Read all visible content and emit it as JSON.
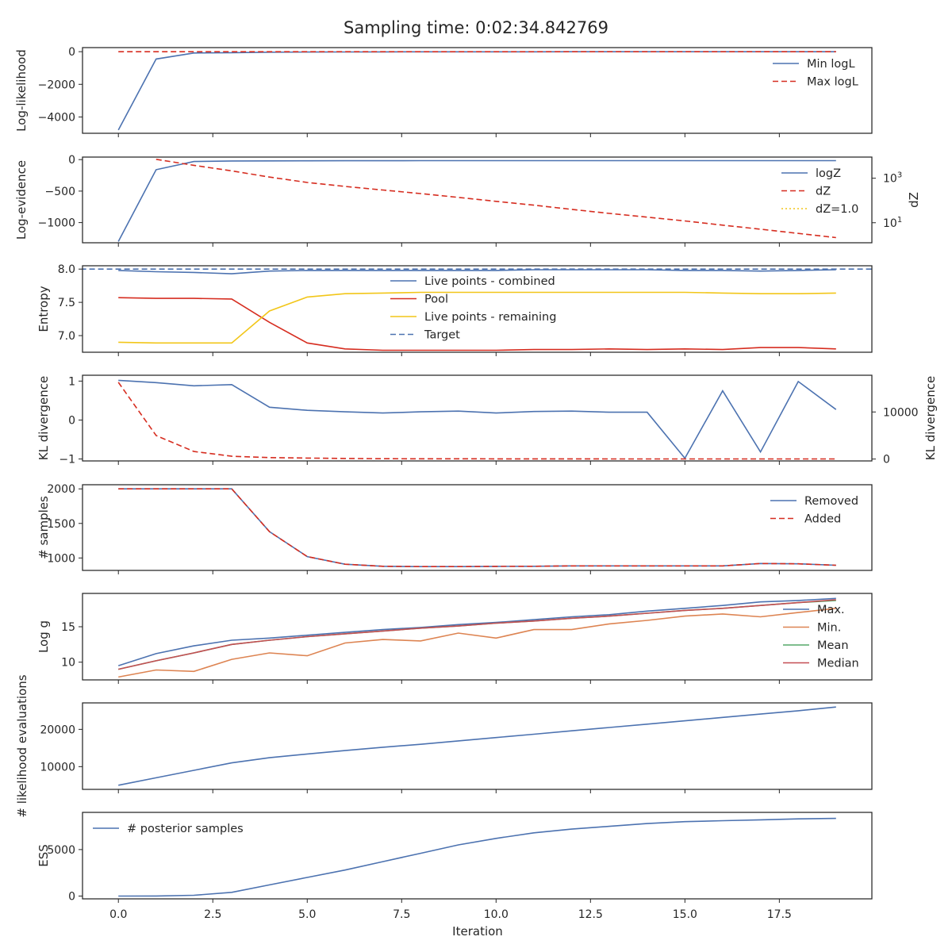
{
  "title": "Sampling time: 0:02:34.842769",
  "xlabel": "Iteration",
  "x_ticks": [
    "0.0",
    "2.5",
    "5.0",
    "7.5",
    "10.0",
    "12.5",
    "15.0",
    "17.5"
  ],
  "colors": {
    "blue": "#4c72b0",
    "red": "#d62d20",
    "yellow": "#f2c619",
    "orange": "#dd8452",
    "green": "#55a868",
    "brown": "#c44e52",
    "axis": "#262626"
  },
  "chart_data": [
    {
      "type": "line",
      "ylabel": "Log-likelihood",
      "x": [
        0,
        1,
        2,
        3,
        4,
        5,
        6,
        7,
        8,
        9,
        10,
        11,
        12,
        13,
        14,
        15,
        16,
        17,
        18,
        19
      ],
      "ylim": [
        -5000,
        250
      ],
      "yticks": [
        {
          "v": 0,
          "t": "0"
        },
        {
          "v": -2000,
          "t": "−2000"
        },
        {
          "v": -4000,
          "t": "−4000"
        }
      ],
      "series": [
        {
          "name": "Min logL",
          "color": "blue",
          "dash": false,
          "x": [
            0,
            1,
            2,
            3,
            4,
            5,
            6,
            7,
            8,
            9,
            10,
            11,
            12,
            13,
            14,
            15,
            16,
            17,
            18,
            19
          ],
          "values": [
            -4800,
            -450,
            -80,
            -60,
            -30,
            -20,
            -15,
            -12,
            -10,
            -8,
            -7,
            -6,
            -5,
            -5,
            -4,
            -4,
            -3,
            -3,
            -3,
            -3
          ]
        },
        {
          "name": "Max logL",
          "color": "red",
          "dash": true,
          "x": [
            0,
            1,
            2,
            3,
            4,
            5,
            6,
            7,
            8,
            9,
            10,
            11,
            12,
            13,
            14,
            15,
            16,
            17,
            18,
            19
          ],
          "values": [
            -2,
            -2,
            -2,
            -2,
            -2,
            -2,
            -2,
            -2,
            -2,
            -2,
            -2,
            -2,
            -2,
            -2,
            -2,
            -2,
            -2,
            -2,
            -2,
            -2
          ]
        }
      ],
      "legend": "upper-right"
    },
    {
      "type": "line",
      "ylabel": "Log-evidence",
      "ylabel_right": "dZ",
      "ylim": [
        -1320,
        40
      ],
      "yticks": [
        {
          "v": 0,
          "t": "0"
        },
        {
          "v": -500,
          "t": "−500"
        },
        {
          "v": -1000,
          "t": "−1000"
        }
      ],
      "right_scale": "log",
      "right_ylim_log10": [
        0.1,
        3.95
      ],
      "right_ticks": [
        {
          "v": 3,
          "t": "10",
          "sup": "3"
        },
        {
          "v": 1,
          "t": "10",
          "sup": "1"
        }
      ],
      "series": [
        {
          "name": "logZ",
          "color": "blue",
          "dash": false,
          "axis": "left",
          "x": [
            0,
            1,
            2,
            3,
            4,
            5,
            6,
            7,
            8,
            9,
            10,
            11,
            12,
            13,
            14,
            15,
            16,
            17,
            18,
            19
          ],
          "values": [
            -1300,
            -160,
            -30,
            -22,
            -20,
            -19,
            -18,
            -18,
            -17,
            -17,
            -17,
            -17,
            -17,
            -17,
            -17,
            -17,
            -17,
            -17,
            -17,
            -17
          ]
        },
        {
          "name": "dZ",
          "color": "red",
          "dash": true,
          "axis": "right",
          "x": [
            1,
            2,
            3,
            4,
            5,
            6,
            7,
            8,
            9,
            10,
            11,
            12,
            13,
            14,
            15,
            16,
            17,
            18,
            19
          ],
          "values": [
            3.85,
            3.58,
            3.33,
            3.05,
            2.81,
            2.63,
            2.47,
            2.31,
            2.14,
            1.96,
            1.79,
            1.6,
            1.42,
            1.25,
            1.08,
            0.89,
            0.71,
            0.52,
            0.33
          ]
        },
        {
          "name": "dZ=1.0",
          "color": "yellow",
          "dash": "dot",
          "axis": "right",
          "x": [
            -1,
            20
          ],
          "values": [
            0.0,
            0.0
          ]
        }
      ],
      "legend": "upper-right"
    },
    {
      "type": "line",
      "ylabel": "Entropy",
      "ylim": [
        6.75,
        8.05
      ],
      "yticks": [
        {
          "v": 8.0,
          "t": "8.0"
        },
        {
          "v": 7.5,
          "t": "7.5"
        },
        {
          "v": 7.0,
          "t": "7.0"
        }
      ],
      "series": [
        {
          "name": "Live points - combined",
          "color": "blue",
          "dash": false,
          "x": [
            0,
            1,
            2,
            3,
            4,
            5,
            6,
            7,
            8,
            9,
            10,
            11,
            12,
            13,
            14,
            15,
            16,
            17,
            18,
            19
          ],
          "values": [
            7.98,
            7.96,
            7.95,
            7.93,
            7.97,
            7.98,
            7.98,
            7.98,
            7.98,
            7.98,
            7.98,
            7.99,
            7.99,
            7.99,
            7.99,
            7.98,
            7.98,
            7.97,
            7.98,
            7.99
          ]
        },
        {
          "name": "Pool",
          "color": "red",
          "dash": false,
          "x": [
            0,
            1,
            2,
            3,
            4,
            5,
            6,
            7,
            8,
            9,
            10,
            11,
            12,
            13,
            14,
            15,
            16,
            17,
            18,
            19
          ],
          "values": [
            7.57,
            7.56,
            7.56,
            7.55,
            7.2,
            6.89,
            6.8,
            6.78,
            6.78,
            6.78,
            6.78,
            6.79,
            6.79,
            6.8,
            6.79,
            6.8,
            6.79,
            6.82,
            6.82,
            6.8
          ]
        },
        {
          "name": "Live points - remaining",
          "color": "yellow",
          "dash": false,
          "x": [
            0,
            1,
            2,
            3,
            4,
            5,
            6,
            7,
            8,
            9,
            10,
            11,
            12,
            13,
            14,
            15,
            16,
            17,
            18,
            19
          ],
          "values": [
            6.9,
            6.89,
            6.89,
            6.89,
            7.37,
            7.58,
            7.63,
            7.64,
            7.65,
            7.65,
            7.65,
            7.65,
            7.65,
            7.65,
            7.65,
            7.65,
            7.64,
            7.63,
            7.63,
            7.64
          ]
        },
        {
          "name": "Target",
          "color": "blue",
          "dash": true,
          "x": [
            -1,
            20
          ],
          "values": [
            8.0,
            8.0
          ]
        }
      ],
      "legend": "upper-center"
    },
    {
      "type": "line",
      "ylabel": "KL divergence",
      "ylabel_right": "KL divergence",
      "ylim": [
        -1.05,
        1.15
      ],
      "yticks": [
        {
          "v": 1,
          "t": "1"
        },
        {
          "v": 0,
          "t": "0"
        },
        {
          "v": -1,
          "t": "−1"
        }
      ],
      "right_ylim": [
        -400,
        17800
      ],
      "right_ticks": [
        {
          "v": 10000,
          "t": "10000"
        },
        {
          "v": 0,
          "t": "0"
        }
      ],
      "series": [
        {
          "name": "",
          "color": "blue",
          "dash": false,
          "axis": "left",
          "x": [
            0,
            1,
            2,
            3,
            4,
            5,
            6,
            7,
            8,
            9,
            10,
            11,
            12,
            13,
            14,
            15,
            16,
            17,
            18,
            19
          ],
          "values": [
            1.02,
            0.96,
            0.88,
            0.91,
            0.33,
            0.25,
            0.21,
            0.18,
            0.21,
            0.23,
            0.18,
            0.22,
            0.23,
            0.2,
            0.2,
            -0.98,
            0.75,
            -0.82,
            0.99,
            0.27
          ]
        },
        {
          "name": "",
          "color": "red",
          "dash": true,
          "axis": "right",
          "x": [
            0,
            1,
            2,
            3,
            4,
            5,
            6,
            7,
            8,
            9,
            10,
            11,
            12,
            13,
            14,
            15,
            16,
            17,
            18,
            19
          ],
          "values": [
            16300,
            5000,
            1600,
            600,
            300,
            200,
            120,
            80,
            60,
            50,
            40,
            30,
            30,
            20,
            20,
            20,
            20,
            20,
            20,
            20
          ]
        }
      ]
    },
    {
      "type": "line",
      "ylabel": "# samples",
      "ylim": [
        820,
        2060
      ],
      "yticks": [
        {
          "v": 2000,
          "t": "2000"
        },
        {
          "v": 1500,
          "t": "1500"
        },
        {
          "v": 1000,
          "t": "1000"
        }
      ],
      "series": [
        {
          "name": "Removed",
          "color": "blue",
          "dash": false,
          "x": [
            0,
            1,
            2,
            3,
            4,
            5,
            6,
            7,
            8,
            9,
            10,
            11,
            12,
            13,
            14,
            15,
            16,
            17,
            18,
            19
          ],
          "values": [
            2000,
            2000,
            2000,
            2000,
            1380,
            1020,
            910,
            880,
            875,
            875,
            878,
            880,
            885,
            885,
            885,
            885,
            885,
            920,
            915,
            895
          ]
        },
        {
          "name": "Added",
          "color": "red",
          "dash": true,
          "x": [
            0,
            1,
            2,
            3,
            4,
            5,
            6,
            7,
            8,
            9,
            10,
            11,
            12,
            13,
            14,
            15,
            16,
            17,
            18,
            19
          ],
          "values": [
            2000,
            2000,
            2000,
            2000,
            1380,
            1020,
            910,
            880,
            875,
            875,
            878,
            880,
            885,
            885,
            885,
            885,
            885,
            920,
            915,
            895
          ]
        }
      ],
      "legend": "upper-right"
    },
    {
      "type": "line",
      "ylabel": "Log g",
      "ylim": [
        7.5,
        19.7
      ],
      "yticks": [
        {
          "v": 15,
          "t": "15"
        },
        {
          "v": 10,
          "t": "10"
        }
      ],
      "series": [
        {
          "name": "Max.",
          "color": "blue",
          "dash": false,
          "x": [
            0,
            1,
            2,
            3,
            4,
            5,
            6,
            7,
            8,
            9,
            10,
            11,
            12,
            13,
            14,
            15,
            16,
            17,
            18,
            19
          ],
          "values": [
            9.5,
            11.2,
            12.3,
            13.1,
            13.4,
            13.8,
            14.2,
            14.6,
            14.9,
            15.3,
            15.6,
            16.0,
            16.4,
            16.7,
            17.2,
            17.6,
            18.0,
            18.5,
            18.7,
            19.0
          ]
        },
        {
          "name": "Min.",
          "color": "orange",
          "dash": false,
          "x": [
            0,
            1,
            2,
            3,
            4,
            5,
            6,
            7,
            8,
            9,
            10,
            11,
            12,
            13,
            14,
            15,
            16,
            17,
            18,
            19
          ],
          "values": [
            7.9,
            8.9,
            8.7,
            10.4,
            11.3,
            10.9,
            12.7,
            13.2,
            13.0,
            14.1,
            13.4,
            14.6,
            14.6,
            15.4,
            15.9,
            16.5,
            16.8,
            16.4,
            17.0,
            17.6
          ]
        },
        {
          "name": "Mean",
          "color": "green",
          "dash": false,
          "x": [
            0,
            1,
            2,
            3,
            4,
            5,
            6,
            7,
            8,
            9,
            10,
            11,
            12,
            13,
            14,
            15,
            16,
            17,
            18,
            19
          ],
          "values": [
            9.0,
            10.2,
            11.3,
            12.5,
            13.1,
            13.6,
            14.0,
            14.4,
            14.8,
            15.1,
            15.5,
            15.8,
            16.2,
            16.5,
            16.9,
            17.3,
            17.6,
            18.0,
            18.4,
            18.7
          ]
        },
        {
          "name": "Median",
          "color": "brown",
          "dash": false,
          "x": [
            0,
            1,
            2,
            3,
            4,
            5,
            6,
            7,
            8,
            9,
            10,
            11,
            12,
            13,
            14,
            15,
            16,
            17,
            18,
            19
          ],
          "values": [
            9.0,
            10.2,
            11.3,
            12.5,
            13.1,
            13.6,
            14.0,
            14.4,
            14.8,
            15.1,
            15.5,
            15.8,
            16.2,
            16.5,
            16.9,
            17.3,
            17.6,
            18.0,
            18.4,
            18.8
          ]
        }
      ],
      "legend": "right"
    },
    {
      "type": "line",
      "ylabel": "# likelihood evaluations",
      "ylim": [
        3900,
        27100
      ],
      "yticks": [
        {
          "v": 20000,
          "t": "20000"
        },
        {
          "v": 10000,
          "t": "10000"
        }
      ],
      "series": [
        {
          "name": "",
          "color": "blue",
          "dash": false,
          "x": [
            0,
            1,
            2,
            3,
            4,
            5,
            6,
            7,
            8,
            9,
            10,
            11,
            12,
            13,
            14,
            15,
            16,
            17,
            18,
            19
          ],
          "values": [
            5000,
            7000,
            9000,
            11000,
            12400,
            13400,
            14300,
            15200,
            16000,
            16900,
            17800,
            18700,
            19600,
            20500,
            21400,
            22300,
            23200,
            24100,
            25000,
            26000
          ]
        }
      ]
    },
    {
      "type": "line",
      "ylabel": "ESS",
      "ylim": [
        -300,
        9000
      ],
      "yticks": [
        {
          "v": 5000,
          "t": "5000"
        },
        {
          "v": 0,
          "t": "0"
        }
      ],
      "series": [
        {
          "name": "# posterior samples",
          "color": "blue",
          "dash": false,
          "x": [
            0,
            1,
            2,
            3,
            4,
            5,
            6,
            7,
            8,
            9,
            10,
            11,
            12,
            13,
            14,
            15,
            16,
            17,
            18,
            19
          ],
          "values": [
            0,
            10,
            80,
            400,
            1200,
            2000,
            2800,
            3700,
            4600,
            5500,
            6200,
            6800,
            7200,
            7500,
            7800,
            8000,
            8100,
            8200,
            8300,
            8350
          ]
        }
      ],
      "legend": "upper-left"
    }
  ]
}
